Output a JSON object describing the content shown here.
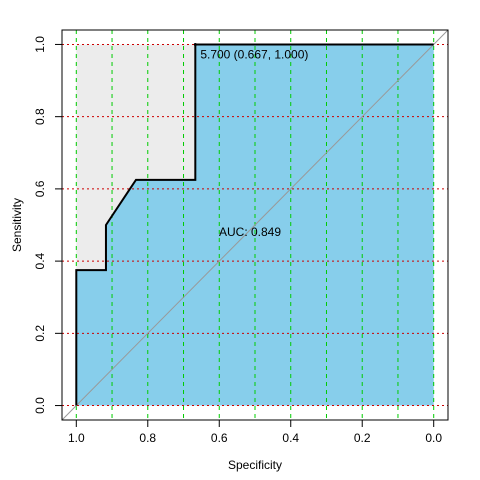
{
  "chart_data": {
    "type": "roc",
    "xlabel": "Specificity",
    "ylabel": "Sensitivity",
    "x": [
      1.0,
      1.0,
      0.917,
      0.917,
      0.833,
      0.667,
      0.667,
      0.0
    ],
    "series": [
      {
        "name": "ROC",
        "color": "#000000",
        "fill": "#87ceeb",
        "values": [
          0.0,
          0.375,
          0.375,
          0.5,
          0.625,
          0.625,
          1.0,
          1.0
        ]
      }
    ],
    "outside_fill": "#ececec",
    "auc_label": "AUC: 0.849",
    "threshold": {
      "label": "5.700 (0.667, 1.000)",
      "x": 0.667,
      "y": 1.0
    },
    "xlim": [
      1.04,
      -0.04
    ],
    "ylim": [
      -0.04,
      1.04
    ],
    "xticks": [
      {
        "value": 1.0,
        "label": "1.0"
      },
      0.8,
      0.6,
      0.4,
      0.2,
      {
        "value": 0.0,
        "label": "0.0"
      }
    ],
    "yticks": [
      {
        "value": 0.0,
        "label": "0.0"
      },
      0.2,
      0.4,
      0.6,
      0.8,
      {
        "value": 1.0,
        "label": "1.0"
      }
    ],
    "xgrid": [
      1.1,
      1.0,
      0.9,
      0.8,
      0.7,
      0.6,
      0.5,
      0.4,
      0.3,
      0.2,
      0.1,
      0.0
    ],
    "ygrid": [
      0.0,
      0.2,
      0.4,
      0.6,
      0.8,
      1.0
    ],
    "xgrid_color": "#00cc00",
    "ygrid_color": "#cc0000"
  }
}
